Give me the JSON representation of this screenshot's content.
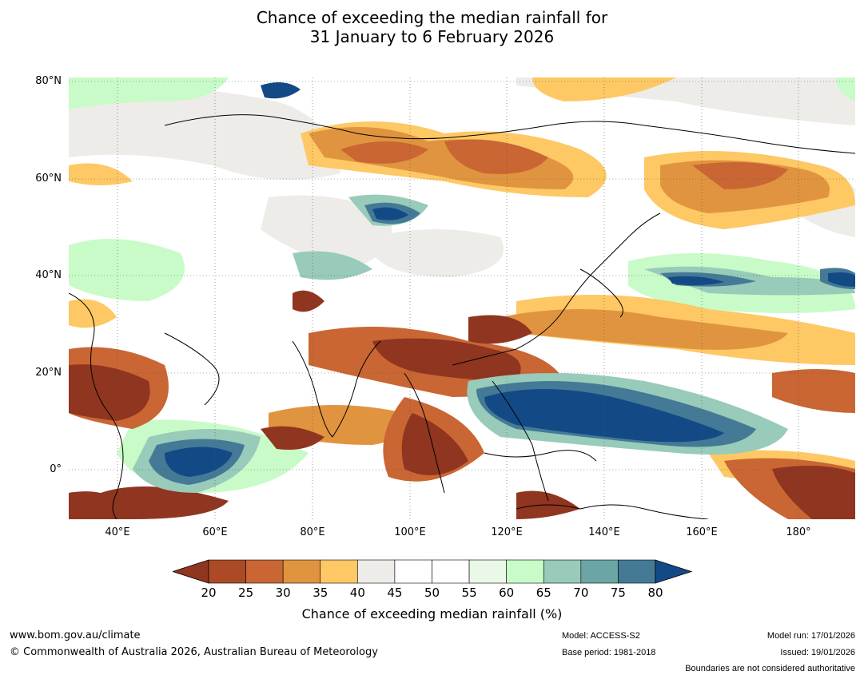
{
  "title_line1": "Chance of exceeding the median rainfall for",
  "title_line2": "31 January to 6 February 2026",
  "lat_labels": [
    "80°N",
    "60°N",
    "40°N",
    "20°N",
    "0°"
  ],
  "lon_labels": [
    "40°E",
    "60°E",
    "80°E",
    "100°E",
    "120°E",
    "140°E",
    "160°E",
    "180°"
  ],
  "colorbar": {
    "label": "Chance of exceeding median rainfall (%)",
    "ticks": [
      "20",
      "25",
      "30",
      "35",
      "40",
      "45",
      "50",
      "55",
      "60",
      "65",
      "70",
      "75",
      "80"
    ],
    "low_color": "#8f3520",
    "high_color": "#134a86",
    "colors": [
      "#ad4a26",
      "#c96633",
      "#e1943f",
      "#fec864",
      "#eeece8",
      "#ffffff",
      "#ffffff",
      "#eaf8e8",
      "#c8fbc8",
      "#98cbb9",
      "#6ba5a6",
      "#447a96"
    ]
  },
  "footer": {
    "url": "www.bom.gov.au/climate",
    "copyright": "© Commonwealth of Australia 2026, Australian Bureau of Meteorology",
    "model": "Model: ACCESS-S2",
    "base_period": "Base period: 1981-2018",
    "model_run": "Model run: 17/01/2026",
    "issued": "Issued: 19/01/2026",
    "disclaimer": "Boundaries are not considered authoritative"
  }
}
